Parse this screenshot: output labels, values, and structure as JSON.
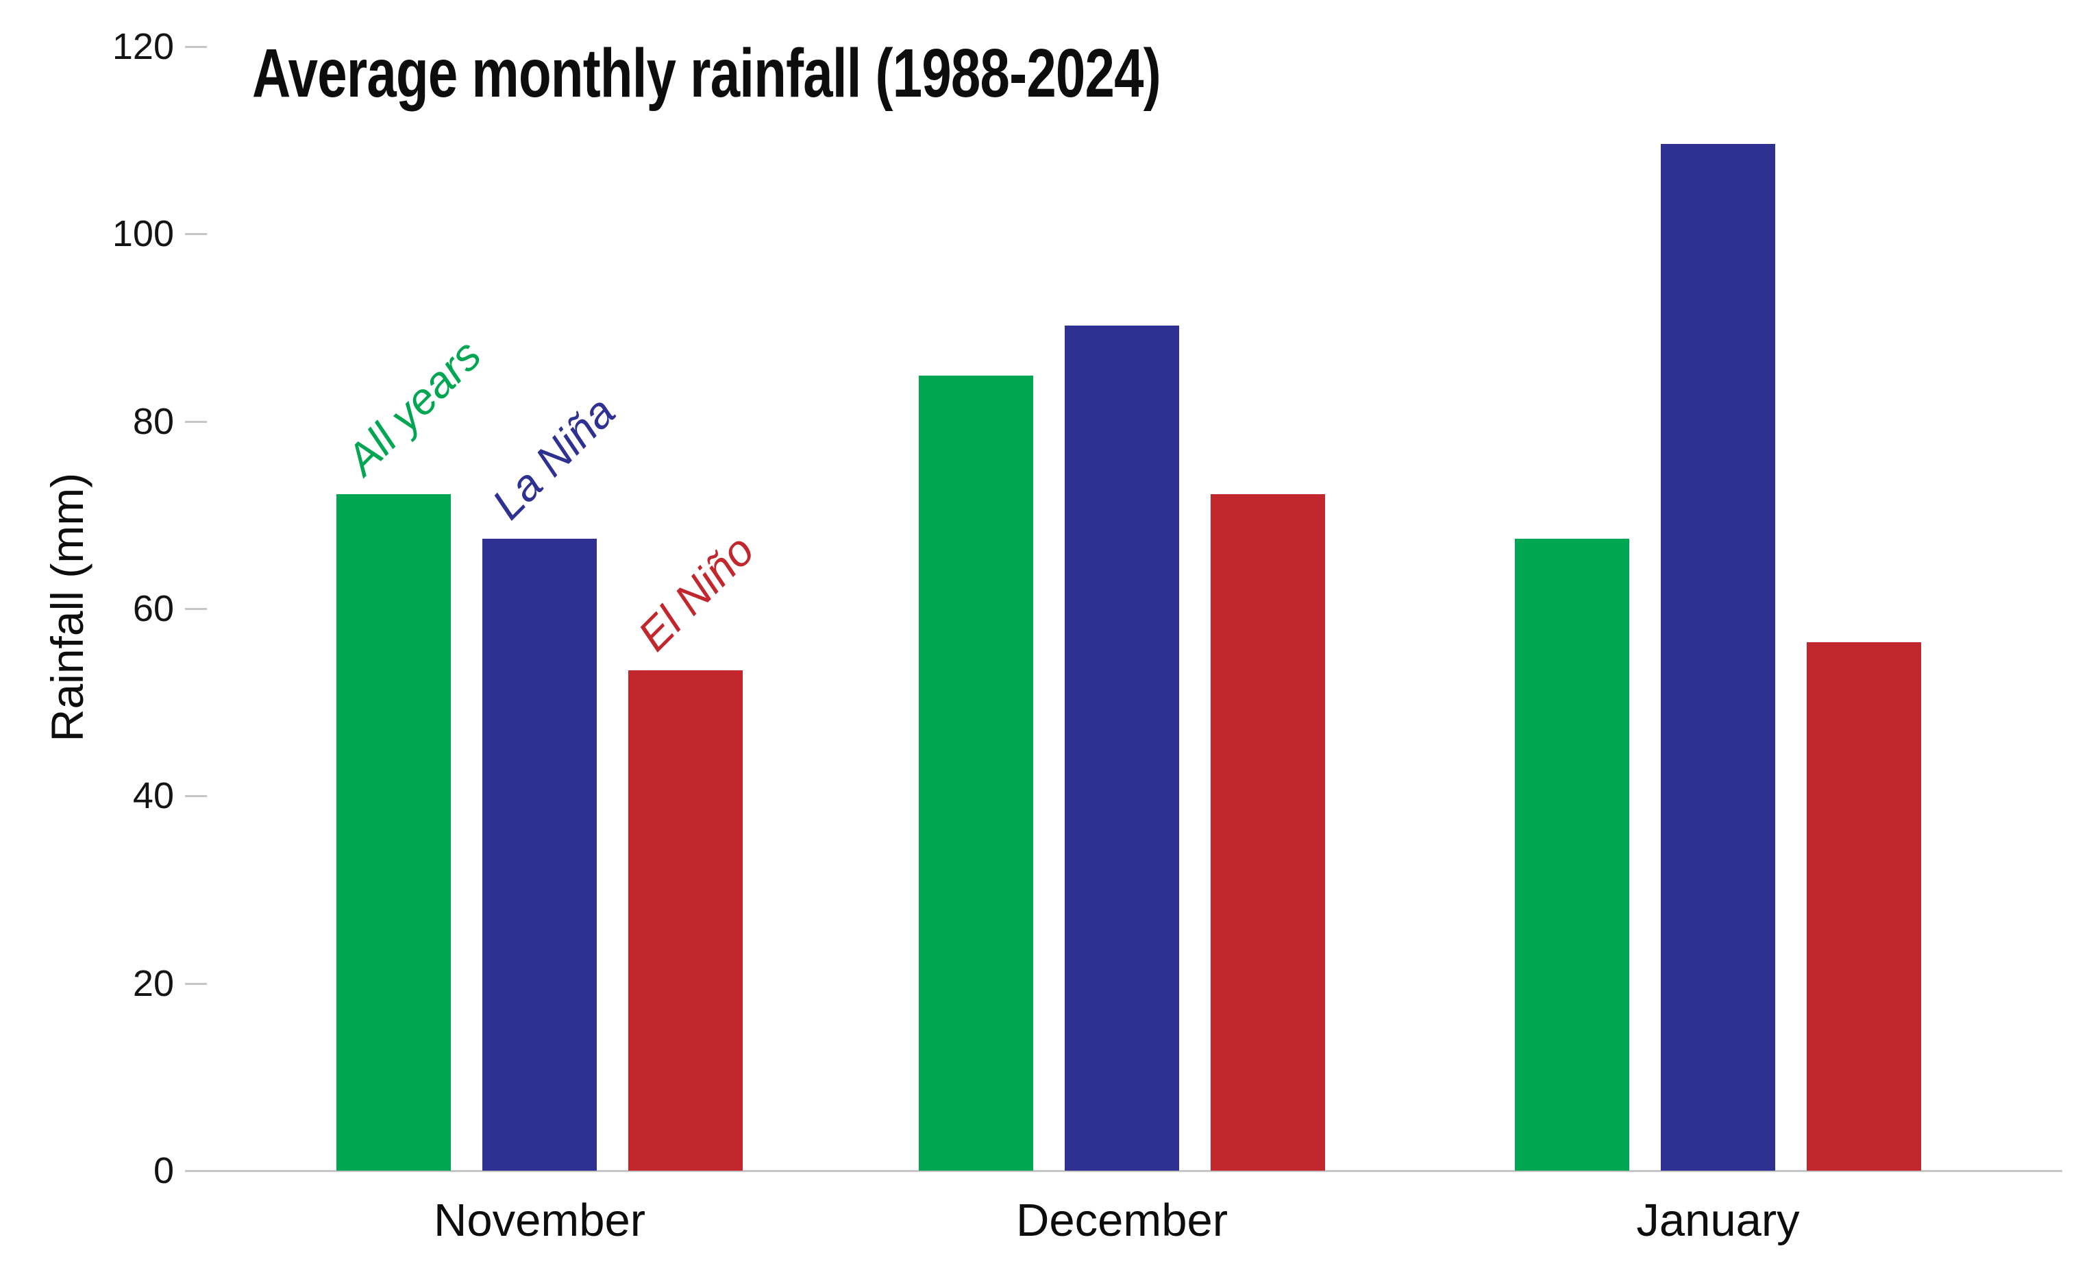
{
  "title": "Average monthly rainfall (1988-2024)",
  "y_axis_label": "Rainfall (mm)",
  "colors": {
    "all_years": "#00A651",
    "la_nina": "#2E3192",
    "el_nino": "#C1272D",
    "axis": "#c6c6c6",
    "text": "#0d0d0d"
  },
  "chart_data": {
    "type": "bar",
    "title": "Average monthly rainfall (1988-2024)",
    "xlabel": "",
    "ylabel": "Rainfall (mm)",
    "categories": [
      "November",
      "December",
      "January"
    ],
    "series": [
      {
        "name": "All years",
        "color": "#00A651",
        "values": [
          72.2,
          84.9,
          67.5
        ]
      },
      {
        "name": "La Niña",
        "color": "#2E3192",
        "values": [
          67.5,
          90.2,
          109.6
        ]
      },
      {
        "name": "El Niño",
        "color": "#C1272D",
        "values": [
          53.4,
          72.2,
          56.4
        ]
      }
    ],
    "ylim": [
      0,
      120
    ],
    "yticks": [
      0,
      20,
      40,
      60,
      80,
      100,
      120
    ],
    "grid": false,
    "legend_position": "rotated-labels-above-first-group-bars"
  }
}
